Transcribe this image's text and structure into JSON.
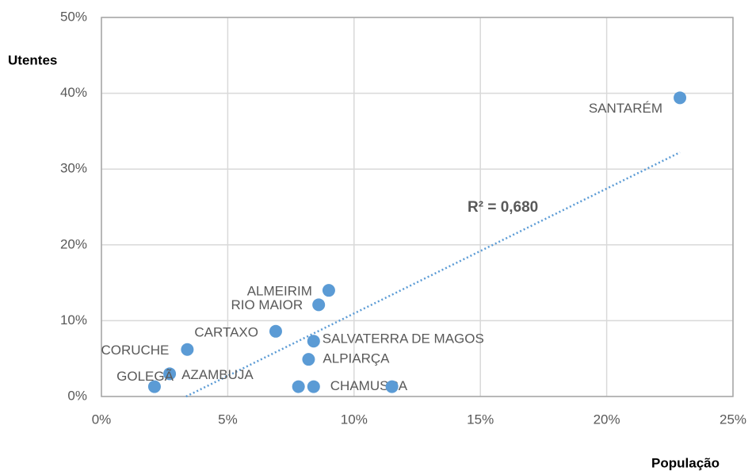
{
  "chart_data": {
    "type": "scatter",
    "x_label": "População",
    "y_label": "Utentes",
    "color": "#5b9bd5",
    "labels": [
      "SANTARÉM",
      "ALMEIRIM",
      "RIO MAIOR",
      "CARTAXO",
      "SALVATERRA DE MAGOS",
      "CORUCHE",
      "ALPIARÇA",
      "AZAMBUJA",
      "GOLEGÃ",
      "CHAMUSCA",
      null,
      null
    ],
    "x": [
      22.9,
      9.0,
      8.6,
      6.9,
      8.4,
      3.4,
      8.2,
      2.7,
      2.1,
      8.4,
      7.8,
      11.5
    ],
    "y": [
      39.4,
      14.0,
      12.1,
      8.6,
      7.3,
      6.2,
      4.9,
      3.0,
      1.3,
      1.3,
      1.3,
      1.3
    ],
    "trendline": {
      "x": [
        3.35,
        22.9
      ],
      "y": [
        0,
        32.2
      ],
      "annotation": "R² = 0,680"
    },
    "xlim": [
      0,
      25
    ],
    "ylim": [
      0,
      50
    ],
    "xticks": [
      {
        "value": 0,
        "label": "0%"
      },
      {
        "value": 5,
        "label": "5%"
      },
      {
        "value": 10,
        "label": "10%"
      },
      {
        "value": 15,
        "label": "15%"
      },
      {
        "value": 20,
        "label": "20%"
      },
      {
        "value": 25,
        "label": "25%"
      }
    ],
    "yticks": [
      {
        "value": 0,
        "label": "0%"
      },
      {
        "value": 10,
        "label": "10%"
      },
      {
        "value": 20,
        "label": "20%"
      },
      {
        "value": 30,
        "label": "30%"
      },
      {
        "value": 40,
        "label": "40%"
      },
      {
        "value": 50,
        "label": "50%"
      }
    ],
    "grid": true
  }
}
